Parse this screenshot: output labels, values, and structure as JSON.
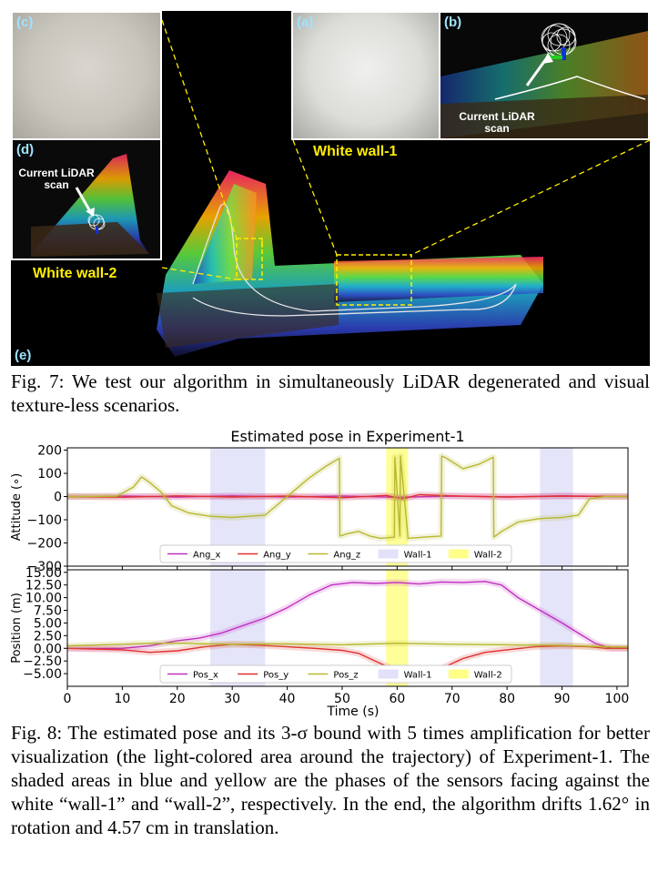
{
  "figure7": {
    "labels": {
      "a": "(a)",
      "b": "(b)",
      "c": "(c)",
      "d": "(d)",
      "e": "(e)"
    },
    "white_wall_1": "White wall-1",
    "white_wall_2": "White wall-2",
    "current_scan_b": [
      "Current LiDAR",
      "scan"
    ],
    "current_scan_d": [
      "Current LiDAR",
      "scan"
    ],
    "caption": "Fig. 7: We test our algorithm in simultaneously LiDAR degenerated and visual texture-less scenarios."
  },
  "figure8": {
    "caption": "Fig. 8: The estimated pose and its 3-σ bound with 5 times amplification for better visualization (the light-colored area around the trajectory) of Experiment-1. The shaded areas in blue and yellow are the phases of the sensors facing against the white “wall-1” and “wall-2”, respectively. In the end, the algorithm drifts 1.62° in rotation and 4.57 cm in translation."
  },
  "chart_data": {
    "type": "line",
    "title": "Estimated pose in Experiment-1",
    "xlabel": "Time (s)",
    "xlim": [
      0,
      102
    ],
    "xticks": [
      0,
      10,
      20,
      30,
      40,
      50,
      60,
      70,
      80,
      90,
      100
    ],
    "shaded": [
      {
        "name": "Wall-1",
        "color": "#b4b4f0",
        "ranges": [
          [
            26,
            36
          ],
          [
            86,
            92
          ]
        ]
      },
      {
        "name": "Wall-2",
        "color": "#ffff55",
        "ranges": [
          [
            58,
            62
          ]
        ]
      }
    ],
    "panels": [
      {
        "ylabel": "Attitude (∘)",
        "ylim": [
          -300,
          210
        ],
        "yticks": [
          200,
          100,
          0,
          -100,
          -200,
          -300
        ],
        "ytick_labels": [
          "200",
          "100",
          "0",
          "−100",
          "−200",
          "−300"
        ],
        "series": [
          {
            "name": "Ang_x",
            "color": "#c030c0",
            "x": [
              0,
              10,
              20,
              30,
              40,
              50,
              60,
              70,
              80,
              90,
              100,
              102
            ],
            "y": [
              0,
              2,
              -2,
              3,
              -2,
              2,
              -3,
              2,
              -2,
              3,
              0,
              0
            ]
          },
          {
            "name": "Ang_y",
            "color": "#e03030",
            "x": [
              0,
              10,
              20,
              30,
              40,
              50,
              58,
              61,
              64,
              70,
              80,
              90,
              100,
              102
            ],
            "y": [
              0,
              -3,
              3,
              -2,
              2,
              -5,
              5,
              -10,
              8,
              3,
              -2,
              2,
              0,
              0
            ]
          },
          {
            "name": "Ang_z",
            "color": "#b8b830",
            "x": [
              0,
              9,
              12,
              13.5,
              15,
              17,
              19,
              22,
              26,
              30,
              36,
              39,
              42,
              44,
              47,
              49.5,
              49.6,
              51,
              53,
              55,
              57,
              59.5,
              59.6,
              60.5,
              60.6,
              62,
              65,
              68,
              68.1,
              69,
              72,
              75,
              77.5,
              77.6,
              79,
              82,
              86,
              90,
              93,
              95,
              98,
              102
            ],
            "y": [
              0,
              2,
              40,
              85,
              60,
              20,
              -40,
              -70,
              -85,
              -90,
              -80,
              -20,
              40,
              80,
              130,
              165,
              -170,
              -160,
              -150,
              -170,
              -180,
              -175,
              170,
              -170,
              175,
              -180,
              -175,
              -170,
              175,
              165,
              120,
              140,
              170,
              -175,
              -150,
              -110,
              -95,
              -90,
              -80,
              -10,
              0,
              0
            ]
          }
        ],
        "legend": [
          "Ang_x",
          "Ang_y",
          "Ang_z",
          "Wall-1",
          "Wall-2"
        ]
      },
      {
        "ylabel": "Position (m)",
        "ylim": [
          -7.5,
          15.5
        ],
        "yticks": [
          15,
          12.5,
          10,
          7.5,
          5,
          2.5,
          0,
          -2.5,
          -5
        ],
        "ytick_labels": [
          "15.00",
          "12.50",
          "10.00",
          "7.50",
          "5.00",
          "2.50",
          "0.00",
          "−2.50",
          "−5.00"
        ],
        "series": [
          {
            "name": "Pos_x",
            "color": "#c030c0",
            "x": [
              0,
              10,
              15,
              20,
              24,
              28,
              32,
              36,
              40,
              44,
              48,
              52,
              56,
              60,
              64,
              68,
              72,
              76,
              79,
              82,
              86,
              90,
              93,
              96,
              99,
              102
            ],
            "y": [
              0,
              0,
              0.5,
              1.5,
              2.0,
              3.0,
              4.5,
              6.0,
              8.0,
              10.5,
              12.5,
              13.0,
              12.8,
              13.0,
              12.7,
              13.1,
              13.0,
              13.2,
              12.5,
              10.0,
              7.5,
              5.0,
              3.0,
              1.0,
              0,
              0
            ]
          },
          {
            "name": "Pos_y",
            "color": "#e03030",
            "x": [
              0,
              10,
              15,
              20,
              25,
              30,
              35,
              40,
              45,
              50,
              53,
              56,
              59,
              61,
              63,
              66,
              69,
              72,
              76,
              80,
              85,
              90,
              95,
              98,
              102
            ],
            "y": [
              0,
              -0.3,
              -0.8,
              -0.5,
              0.3,
              0.8,
              0.6,
              0.3,
              0,
              -0.4,
              -1.0,
              -2.5,
              -4.0,
              -5.3,
              -5.7,
              -5.0,
              -3.5,
              -2.0,
              -0.8,
              -0.3,
              0.3,
              0.5,
              0.3,
              0,
              0
            ]
          },
          {
            "name": "Pos_z",
            "color": "#b8b830",
            "x": [
              0,
              10,
              15,
              20,
              30,
              40,
              50,
              60,
              70,
              80,
              90,
              95,
              102
            ],
            "y": [
              0.5,
              0.8,
              1.0,
              1.0,
              0.8,
              0.9,
              0.7,
              1.0,
              0.8,
              0.7,
              0.6,
              0.4,
              0.2
            ]
          }
        ],
        "legend": [
          "Pos_x",
          "Pos_y",
          "Pos_z",
          "Wall-1",
          "Wall-2"
        ]
      }
    ]
  }
}
